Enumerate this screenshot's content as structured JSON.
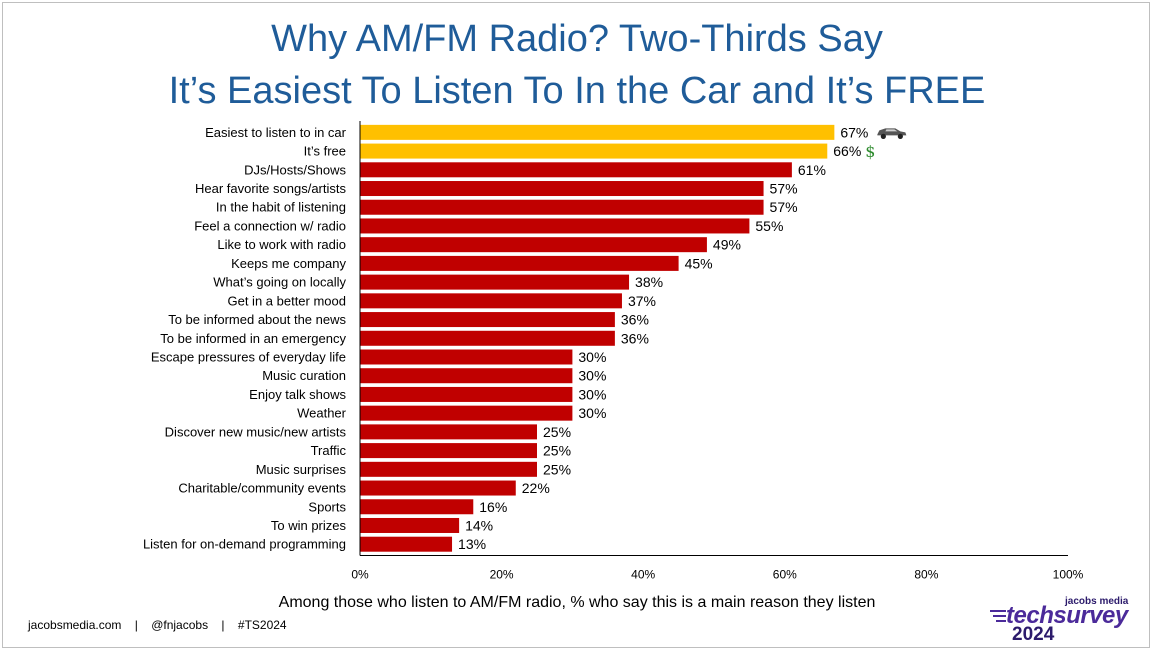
{
  "title_line1": "Why AM/FM Radio? Two-Thirds Say",
  "title_line2": "It’s Easiest To Listen To In the Car and It’s FREE",
  "subtitle": "Among those who listen to AM/FM radio, % who say this is a main reason they listen",
  "footer": {
    "site": "jacobsmedia.com",
    "separator": "|",
    "handle": "@fnjacobs",
    "hashtag": "#TS2024"
  },
  "logo": {
    "brand_small": "jacobs media",
    "brand_main": "techsurvey",
    "year": "2024"
  },
  "colors": {
    "highlight": "#ffc000",
    "bar": "#c00000",
    "title": "#1f5c99",
    "car_icon": "#555555",
    "dollar_icon": "#2e8b2e"
  },
  "icons": {
    "car": "car-icon",
    "dollar": "dollar-icon",
    "dollar_glyph": "$"
  },
  "chart_data": {
    "type": "bar",
    "orientation": "horizontal",
    "categories": [
      "Easiest to listen to in car",
      "It’s free",
      "DJs/Hosts/Shows",
      "Hear favorite songs/artists",
      "In the habit of listening",
      "Feel a connection w/ radio",
      "Like to work with radio",
      "Keeps me company",
      "What’s going on locally",
      "Get in a better mood",
      "To be informed about the news",
      "To be informed in an emergency",
      "Escape pressures of everyday life",
      "Music curation",
      "Enjoy talk shows",
      "Weather",
      "Discover new music/new artists",
      "Traffic",
      "Music surprises",
      "Charitable/community events",
      "Sports",
      "To win prizes",
      "Listen for on-demand programming"
    ],
    "values": [
      67,
      66,
      61,
      57,
      57,
      55,
      49,
      45,
      38,
      37,
      36,
      36,
      30,
      30,
      30,
      30,
      25,
      25,
      25,
      22,
      16,
      14,
      13
    ],
    "value_labels": [
      "67%",
      "66%",
      "61%",
      "57%",
      "57%",
      "55%",
      "49%",
      "45%",
      "38%",
      "37%",
      "36%",
      "36%",
      "30%",
      "30%",
      "30%",
      "30%",
      "25%",
      "25%",
      "25%",
      "22%",
      "16%",
      "14%",
      "13%"
    ],
    "highlighted": [
      0,
      1
    ],
    "xlim": [
      0,
      100
    ],
    "xticks": [
      0,
      20,
      40,
      60,
      80,
      100
    ],
    "xtick_labels": [
      "0%",
      "20%",
      "40%",
      "60%",
      "80%",
      "100%"
    ],
    "grid": false,
    "legend": "none"
  }
}
